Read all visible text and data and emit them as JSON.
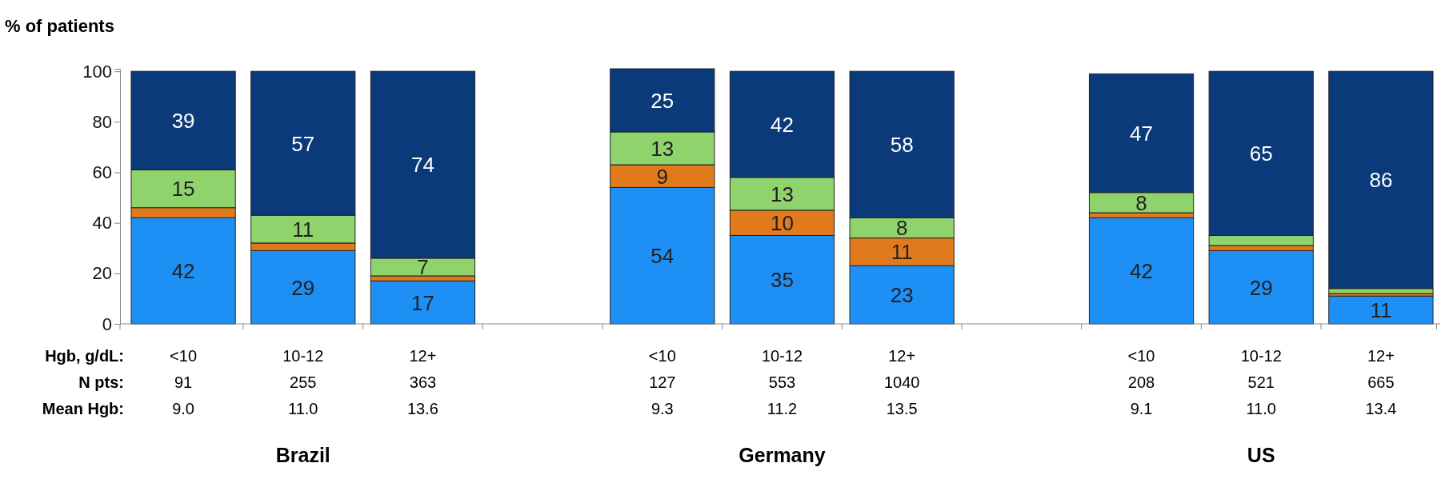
{
  "chart_data": {
    "type": "bar",
    "stacked": true,
    "ylabel": "% of patients",
    "categories": [
      "<10",
      "10-12",
      "12+",
      null,
      "<10",
      "10-12",
      "12+",
      null,
      "<10",
      "10-12",
      "12+"
    ],
    "series": [
      {
        "color": "#1e8ff5",
        "values": [
          42,
          29,
          17,
          null,
          54,
          35,
          23,
          null,
          42,
          29,
          11
        ],
        "value_labels": [
          "42",
          "29",
          "17",
          null,
          "54",
          "35",
          "23",
          null,
          "42",
          "29",
          "11"
        ]
      },
      {
        "color": "#e07a1c",
        "values": [
          4,
          3,
          2,
          null,
          9,
          10,
          11,
          null,
          2,
          2,
          1
        ],
        "value_labels": [
          null,
          null,
          null,
          null,
          "9",
          "10",
          "11",
          null,
          null,
          null,
          null
        ]
      },
      {
        "color": "#8fd36c",
        "values": [
          15,
          11,
          7,
          null,
          13,
          13,
          8,
          null,
          8,
          4,
          2
        ],
        "value_labels": [
          "15",
          "11",
          "7",
          null,
          "13",
          "13",
          "8",
          null,
          "8",
          null,
          null
        ]
      },
      {
        "color": "#0b3a7a",
        "values": [
          39,
          57,
          74,
          null,
          25,
          42,
          58,
          null,
          47,
          65,
          86
        ],
        "value_labels": [
          "39",
          "57",
          "74",
          null,
          "25",
          "42",
          "58",
          null,
          "47",
          "65",
          "86"
        ]
      }
    ],
    "ylim": [
      0,
      101
    ],
    "yticks": [
      0,
      20,
      40,
      60,
      80,
      100
    ],
    "grid": false,
    "annotations": [
      "Hgb, g/dL:",
      "N pts:",
      "Mean Hgb:",
      "91",
      "255",
      "363",
      "127",
      "553",
      "1040",
      "208",
      "521",
      "665",
      "9.0",
      "11.0",
      "13.6",
      "9.3",
      "11.2",
      "13.5",
      "9.1",
      "11.0",
      "13.4",
      "Brazil",
      "Germany",
      "US"
    ]
  }
}
